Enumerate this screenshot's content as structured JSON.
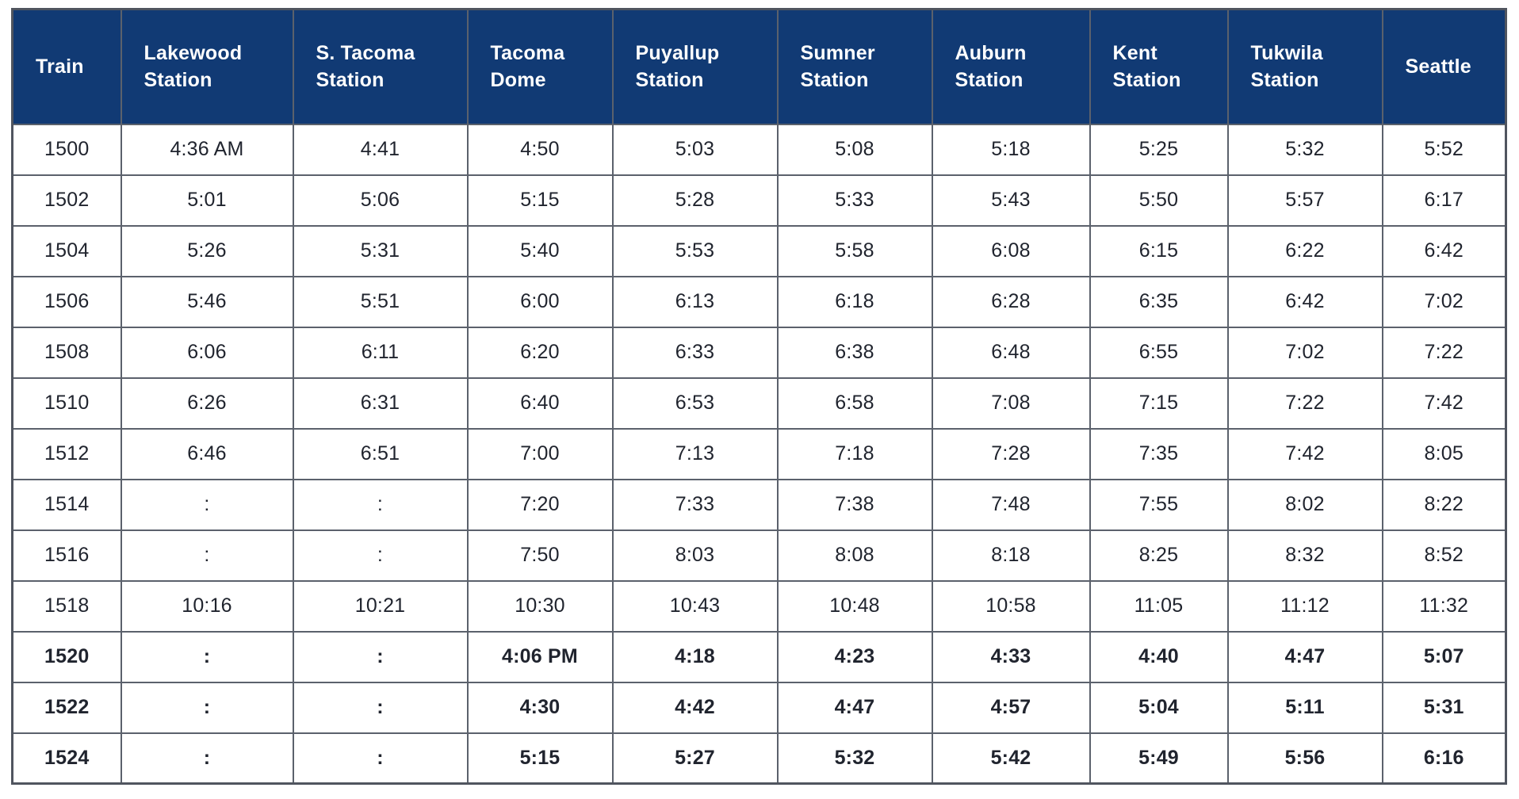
{
  "chart_data": {
    "type": "table",
    "columns": [
      "Train",
      "Lakewood Station",
      "S. Tacoma Station",
      "Tacoma Dome",
      "Puyallup Station",
      "Sumner Station",
      "Auburn Station",
      "Kent Station",
      "Tukwila Station",
      "Seattle"
    ],
    "rows": [
      {
        "train": "1500",
        "bold": false,
        "times": [
          "4:36 AM",
          "4:41",
          "4:50",
          "5:03",
          "5:08",
          "5:18",
          "5:25",
          "5:32",
          "5:52"
        ]
      },
      {
        "train": "1502",
        "bold": false,
        "times": [
          "5:01",
          "5:06",
          "5:15",
          "5:28",
          "5:33",
          "5:43",
          "5:50",
          "5:57",
          "6:17"
        ]
      },
      {
        "train": "1504",
        "bold": false,
        "times": [
          "5:26",
          "5:31",
          "5:40",
          "5:53",
          "5:58",
          "6:08",
          "6:15",
          "6:22",
          "6:42"
        ]
      },
      {
        "train": "1506",
        "bold": false,
        "times": [
          "5:46",
          "5:51",
          "6:00",
          "6:13",
          "6:18",
          "6:28",
          "6:35",
          "6:42",
          "7:02"
        ]
      },
      {
        "train": "1508",
        "bold": false,
        "times": [
          "6:06",
          "6:11",
          "6:20",
          "6:33",
          "6:38",
          "6:48",
          "6:55",
          "7:02",
          "7:22"
        ]
      },
      {
        "train": "1510",
        "bold": false,
        "times": [
          "6:26",
          "6:31",
          "6:40",
          "6:53",
          "6:58",
          "7:08",
          "7:15",
          "7:22",
          "7:42"
        ]
      },
      {
        "train": "1512",
        "bold": false,
        "times": [
          "6:46",
          "6:51",
          "7:00",
          "7:13",
          "7:18",
          "7:28",
          "7:35",
          "7:42",
          "8:05"
        ]
      },
      {
        "train": "1514",
        "bold": false,
        "times": [
          ":",
          ":",
          "7:20",
          "7:33",
          "7:38",
          "7:48",
          "7:55",
          "8:02",
          "8:22"
        ]
      },
      {
        "train": "1516",
        "bold": false,
        "times": [
          ":",
          ":",
          "7:50",
          "8:03",
          "8:08",
          "8:18",
          "8:25",
          "8:32",
          "8:52"
        ]
      },
      {
        "train": "1518",
        "bold": false,
        "times": [
          "10:16",
          "10:21",
          "10:30",
          "10:43",
          "10:48",
          "10:58",
          "11:05",
          "11:12",
          "11:32"
        ]
      },
      {
        "train": "1520",
        "bold": true,
        "times": [
          ":",
          ":",
          "4:06 PM",
          "4:18",
          "4:23",
          "4:33",
          "4:40",
          "4:47",
          "5:07"
        ]
      },
      {
        "train": "1522",
        "bold": true,
        "times": [
          ":",
          ":",
          "4:30",
          "4:42",
          "4:47",
          "4:57",
          "5:04",
          "5:11",
          "5:31"
        ]
      },
      {
        "train": "1524",
        "bold": true,
        "times": [
          ":",
          ":",
          "5:15",
          "5:27",
          "5:32",
          "5:42",
          "5:49",
          "5:56",
          "6:16"
        ]
      }
    ]
  },
  "colors": {
    "header_bg": "#113A74",
    "header_text": "#FFFFFF",
    "cell_text": "#20242E",
    "border": "#5B616C",
    "outer_border": "#50555F"
  }
}
